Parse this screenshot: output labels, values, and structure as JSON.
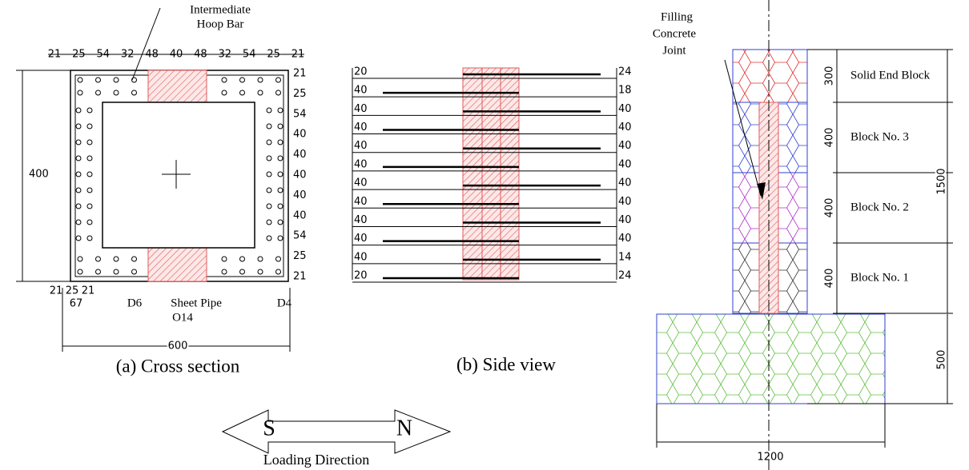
{
  "cross_section": {
    "caption": "(a) Cross section",
    "hoop_label": [
      "Intermediate",
      "Hoop Bar"
    ],
    "top_dims": [
      21,
      25,
      54,
      32,
      48,
      40,
      48,
      32,
      54,
      25,
      21
    ],
    "right_dims": [
      21,
      25,
      54,
      40,
      40,
      40,
      40,
      40,
      54,
      25,
      21
    ],
    "height_dim": 400,
    "bottom_dims": [
      21,
      25,
      21
    ],
    "offset_dim": 67,
    "bar_label": "D6",
    "pipe_label": [
      "Sheet Pipe",
      "O14"
    ],
    "hoop_bar": "D4",
    "width_dim": 600
  },
  "side_view": {
    "caption": "(b) Side view",
    "left_dims": [
      20,
      40,
      40,
      40,
      40,
      40,
      40,
      40,
      40,
      40,
      40,
      20
    ],
    "right_dims": [
      24,
      18,
      40,
      40,
      40,
      40,
      40,
      40,
      40,
      40,
      14,
      24
    ]
  },
  "elevation": {
    "joint_label": [
      "Filling",
      "Concrete",
      "Joint"
    ],
    "block_dims": [
      300,
      400,
      400,
      400
    ],
    "block_labels": [
      "Solid End Block",
      "Block No. 3",
      "Block No. 2",
      "Block No. 1"
    ],
    "height_dim": 1500,
    "base_height": 500,
    "base_width": 1200
  },
  "loading": {
    "south": "S",
    "north": "N",
    "label": "Loading Direction"
  }
}
